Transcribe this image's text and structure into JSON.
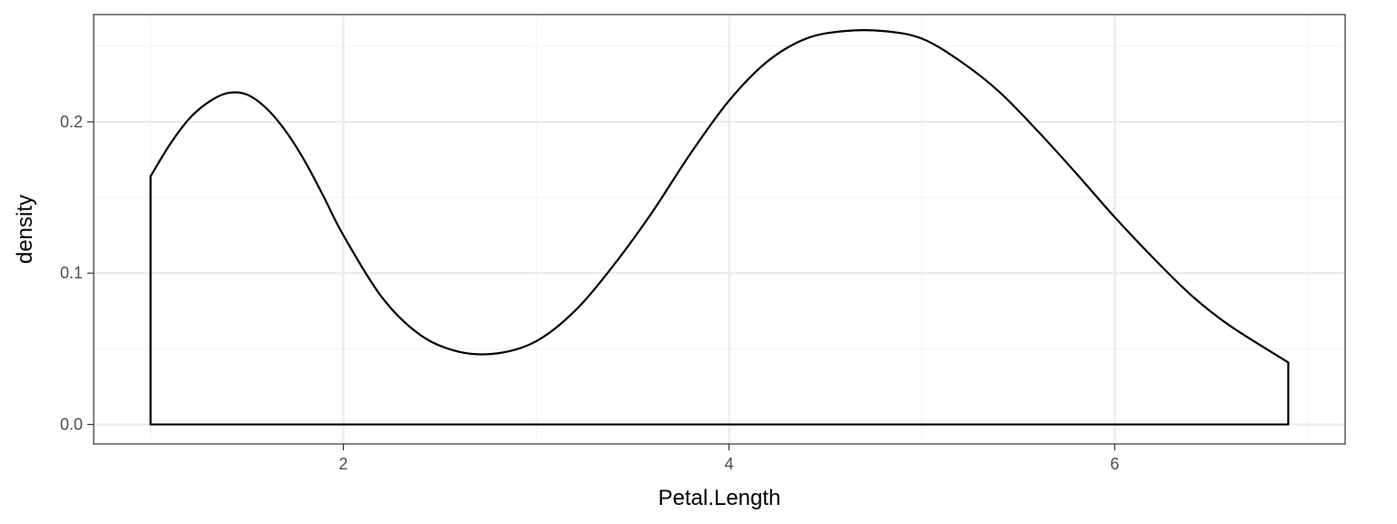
{
  "chart_data": {
    "type": "area",
    "title": "",
    "xlabel": "Petal.Length",
    "ylabel": "density",
    "xlim": [
      0.705,
      7.195
    ],
    "ylim": [
      -0.0129,
      0.2709
    ],
    "xticks": [
      2,
      4,
      6
    ],
    "xtick_labels": [
      "2",
      "4",
      "6"
    ],
    "yticks": [
      0.0,
      0.1,
      0.2
    ],
    "ytick_labels": [
      "0.0",
      "0.1",
      "0.2"
    ],
    "grid": true,
    "legend": "none",
    "colors": {
      "line": "#000000",
      "fill": "none",
      "panel_border": "#333333",
      "grid_major": "#ebebeb",
      "grid_minor": "#f4f4f4"
    },
    "series": [
      {
        "x": [
          1.0,
          1.1,
          1.2,
          1.3,
          1.4,
          1.5,
          1.6,
          1.7,
          1.8,
          1.9,
          2.0,
          2.2,
          2.4,
          2.6,
          2.8,
          3.0,
          3.2,
          3.4,
          3.6,
          3.8,
          4.0,
          4.2,
          4.4,
          4.6,
          4.8,
          5.0,
          5.2,
          5.4,
          5.6,
          5.8,
          6.0,
          6.2,
          6.4,
          6.6,
          6.9
        ],
        "y": [
          0.164,
          0.185,
          0.202,
          0.213,
          0.219,
          0.218,
          0.209,
          0.194,
          0.174,
          0.15,
          0.125,
          0.084,
          0.059,
          0.048,
          0.047,
          0.055,
          0.075,
          0.105,
          0.14,
          0.179,
          0.214,
          0.24,
          0.255,
          0.26,
          0.26,
          0.255,
          0.24,
          0.22,
          0.194,
          0.166,
          0.137,
          0.11,
          0.085,
          0.065,
          0.041
        ]
      }
    ]
  }
}
